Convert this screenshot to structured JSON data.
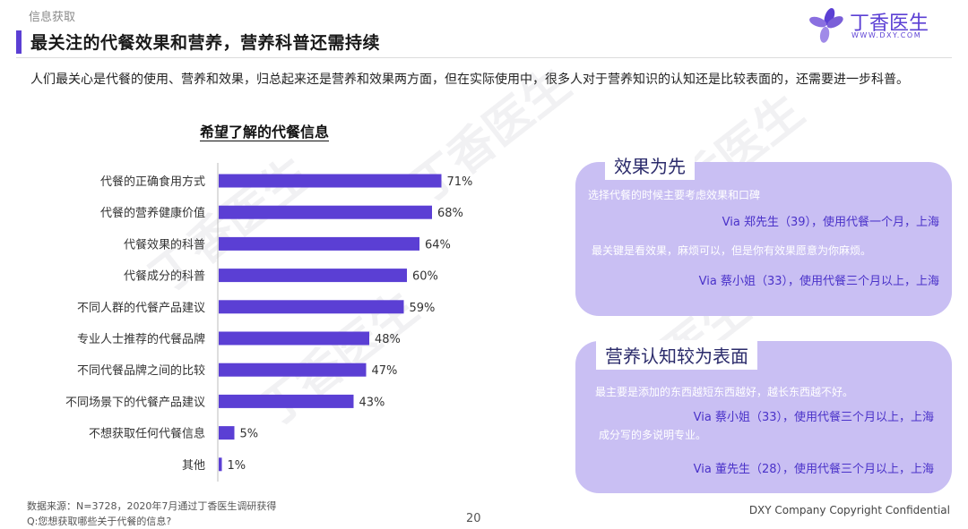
{
  "section_tag": "信息获取",
  "page_title": "最关注的代餐效果和营养，营养科普还需持续",
  "logo": {
    "name": "丁香医生",
    "url": "WWW.DXY.COM"
  },
  "intro": "人们最关心是代餐的使用、营养和效果，归总起来还是营养和效果两方面，但在实际使用中，很多人对于营养知识的认知还是比较表面的，还需要进一步科普。",
  "chart_data": {
    "type": "bar",
    "orientation": "horizontal",
    "title": "希望了解的代餐信息",
    "categories": [
      "代餐的正确食用方式",
      "代餐的营养健康价值",
      "代餐效果的科普",
      "代餐成分的科普",
      "不同人群的代餐产品建议",
      "专业人士推荐的代餐品牌",
      "不同代餐品牌之间的比较",
      "不同场景下的代餐产品建议",
      "不想获取任何代餐信息",
      "其他"
    ],
    "values": [
      71,
      68,
      64,
      60,
      59,
      48,
      47,
      43,
      5,
      1
    ],
    "value_labels": [
      "71%",
      "68%",
      "64%",
      "60%",
      "59%",
      "48%",
      "47%",
      "43%",
      "5%",
      "1%"
    ],
    "unit": "%",
    "xlim": [
      0,
      100
    ],
    "grid": false,
    "bar_color": "#5b3fd4"
  },
  "cards": [
    {
      "heading": "效果为先",
      "quotes": [
        {
          "text": "选择代餐的时候主要考虑效果和口碑",
          "via": "Via 郑先生（39），使用代餐一个月，上海"
        },
        {
          "text": "最关键是看效果，麻烦可以，但是你有效果愿意为你麻烦。",
          "via": "Via 蔡小姐（33），使用代餐三个月以上，上海"
        }
      ]
    },
    {
      "heading": "营养认知较为表面",
      "quotes": [
        {
          "text": "最主要是添加的东西越短东西越好，越长东西越不好。",
          "via": "Via 蔡小姐（33），使用代餐三个月以上，上海"
        },
        {
          "text": "成分写的多说明专业。",
          "via": "Via 董先生（28），使用代餐三个月以上，上海"
        }
      ]
    }
  ],
  "footer": {
    "source": "数据来源：N=3728，2020年7月通过丁香医生调研获得",
    "question": "Q:您想获取哪些关于代餐的信息?",
    "page_number": "20",
    "copyright": "DXY Company Copyright Confidential"
  },
  "colors": {
    "accent": "#5b3fd4",
    "card_bg": "#c9bff3",
    "via_text": "#4a32c9"
  }
}
